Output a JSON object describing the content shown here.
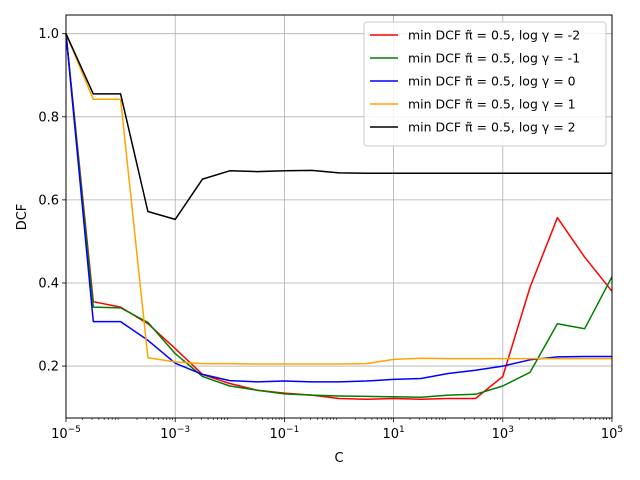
{
  "chart_data": {
    "type": "line",
    "xlabel": "C",
    "ylabel": "DCF",
    "xscale": "log",
    "xlim": [
      1e-05,
      100000
    ],
    "ylim": [
      0.075,
      1.045
    ],
    "grid": true,
    "legend_position": "top-right",
    "x_ticks": [
      {
        "value": 1e-05,
        "base": "10",
        "exp": "−5"
      },
      {
        "value": 0.001,
        "base": "10",
        "exp": "−3"
      },
      {
        "value": 0.1,
        "base": "10",
        "exp": "−1"
      },
      {
        "value": 10,
        "base": "10",
        "exp": "1"
      },
      {
        "value": 1000,
        "base": "10",
        "exp": "3"
      },
      {
        "value": 100000,
        "base": "10",
        "exp": "5"
      }
    ],
    "y_ticks": [
      {
        "value": 0.2,
        "label": "0.2"
      },
      {
        "value": 0.4,
        "label": "0.4"
      },
      {
        "value": 0.6,
        "label": "0.6"
      },
      {
        "value": 0.8,
        "label": "0.8"
      },
      {
        "value": 1.0,
        "label": "1.0"
      }
    ],
    "x": [
      1e-05,
      3.16e-05,
      0.0001,
      0.000316,
      0.001,
      0.00316,
      0.01,
      0.0316,
      0.1,
      0.316,
      1,
      3.16,
      10,
      31.6,
      100,
      316,
      1000,
      3160,
      10000,
      31600,
      100000
    ],
    "series": [
      {
        "name": "min DCF π̃ = 0.5, log γ = -2",
        "color": "#ff0000",
        "values": [
          1.0,
          0.355,
          0.342,
          0.302,
          0.242,
          0.18,
          0.158,
          0.142,
          0.135,
          0.13,
          0.122,
          0.12,
          0.122,
          0.12,
          0.122,
          0.122,
          0.175,
          0.39,
          0.557,
          0.462,
          0.38
        ]
      },
      {
        "name": "min DCF π̃ = 0.5, log γ = -1",
        "color": "#008000",
        "values": [
          1.0,
          0.342,
          0.34,
          0.305,
          0.23,
          0.175,
          0.152,
          0.142,
          0.133,
          0.13,
          0.128,
          0.127,
          0.126,
          0.125,
          0.13,
          0.132,
          0.152,
          0.185,
          0.302,
          0.29,
          0.415
        ]
      },
      {
        "name": "min DCF π̃ = 0.5, log γ = 0",
        "color": "#0000ff",
        "values": [
          1.0,
          0.307,
          0.307,
          0.262,
          0.207,
          0.18,
          0.165,
          0.162,
          0.164,
          0.162,
          0.162,
          0.164,
          0.168,
          0.17,
          0.182,
          0.19,
          0.2,
          0.215,
          0.222,
          0.223,
          0.223
        ]
      },
      {
        "name": "min DCF π̃ = 0.5, log γ = 1",
        "color": "#ffa500",
        "values": [
          1.0,
          0.842,
          0.842,
          0.22,
          0.21,
          0.206,
          0.206,
          0.205,
          0.205,
          0.205,
          0.205,
          0.206,
          0.216,
          0.219,
          0.218,
          0.218,
          0.218,
          0.218,
          0.218,
          0.218,
          0.218
        ]
      },
      {
        "name": "min DCF π̃ = 0.5, log γ = 2",
        "color": "#000000",
        "values": [
          1.0,
          0.855,
          0.855,
          0.572,
          0.553,
          0.65,
          0.67,
          0.668,
          0.67,
          0.671,
          0.665,
          0.664,
          0.664,
          0.664,
          0.664,
          0.664,
          0.664,
          0.664,
          0.664,
          0.664,
          0.664
        ]
      }
    ]
  }
}
